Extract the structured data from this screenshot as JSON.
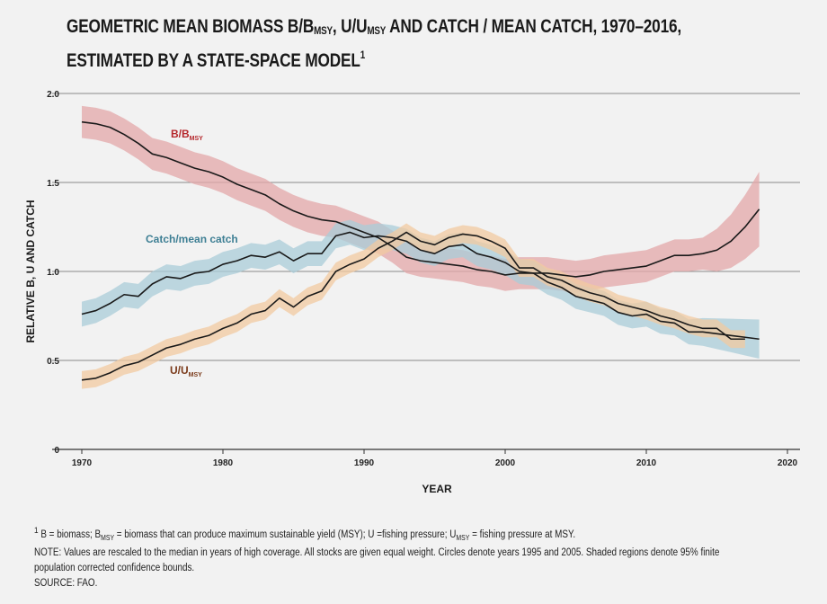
{
  "title": {
    "line1_parts": [
      "GEOMETRIC MEAN BIOMASS B/B",
      "MSY",
      ", U/U",
      "MSY",
      " AND CATCH / MEAN CATCH, 1970–2016,"
    ],
    "line2": "ESTIMATED BY A STATE-SPACE MODEL",
    "line2_sup": "1"
  },
  "footer": {
    "note1_parts": [
      "1",
      " B = biomass; B",
      "MSY",
      " = biomass that can produce maximum sustainable yield (MSY); U =fishing pressure; U",
      "MSY",
      " = fishing pressure at MSY."
    ],
    "note2": "NOTE: Values are rescaled to the median in years of high coverage. All stocks are given equal weight. Circles denote years 1995 and 2005. Shaded regions denote 95% finite",
    "note3": "population corrected confidence bounds.",
    "source": "SOURCE: FAO."
  },
  "chart_data": {
    "type": "line",
    "title": "GEOMETRIC MEAN BIOMASS B/BMSY, U/UMSY AND CATCH / MEAN CATCH, 1970–2016, ESTIMATED BY A STATE-SPACE MODEL",
    "xlabel": "YEAR",
    "ylabel": "RELATIVE B, U AND CATCH",
    "xlim": [
      1968,
      2021
    ],
    "ylim": [
      0,
      2.0
    ],
    "xticks": [
      1970,
      1980,
      1990,
      2000,
      2010,
      2020
    ],
    "yticks": [
      0,
      0.5,
      1.0,
      1.5,
      2.0
    ],
    "ytick_labels": [
      "0",
      "0.5",
      "1.0",
      "1.5",
      "2.0"
    ],
    "grid": "horizontal",
    "series": [
      {
        "name": "B/BMSY",
        "label_main": "B/B",
        "label_sub": "MSY",
        "color": "#b5262b",
        "band_color": "#e3a7a8",
        "x": [
          1970,
          1971,
          1972,
          1973,
          1974,
          1975,
          1976,
          1977,
          1978,
          1979,
          1980,
          1981,
          1982,
          1983,
          1984,
          1985,
          1986,
          1987,
          1988,
          1989,
          1990,
          1991,
          1992,
          1993,
          1994,
          1995,
          1996,
          1997,
          1998,
          1999,
          2000,
          2001,
          2002,
          2003,
          2004,
          2005,
          2006,
          2007,
          2008,
          2009,
          2010,
          2011,
          2012,
          2013,
          2014,
          2015,
          2016,
          2017,
          2018
        ],
        "values": [
          1.84,
          1.83,
          1.81,
          1.77,
          1.72,
          1.66,
          1.64,
          1.61,
          1.58,
          1.56,
          1.53,
          1.49,
          1.46,
          1.43,
          1.38,
          1.34,
          1.31,
          1.29,
          1.28,
          1.25,
          1.22,
          1.19,
          1.14,
          1.08,
          1.06,
          1.05,
          1.04,
          1.03,
          1.01,
          1.0,
          0.98,
          0.99,
          0.99,
          0.99,
          0.98,
          0.97,
          0.98,
          1.0,
          1.01,
          1.02,
          1.03,
          1.06,
          1.09,
          1.09,
          1.1,
          1.12,
          1.17,
          1.25,
          1.35
        ],
        "band": 0.09
      },
      {
        "name": "Catch/mean catch",
        "label_main": "Catch/mean catch",
        "label_sub": "",
        "color": "#3e7f94",
        "band_color": "#a9ccd8",
        "x": [
          1970,
          1971,
          1972,
          1973,
          1974,
          1975,
          1976,
          1977,
          1978,
          1979,
          1980,
          1981,
          1982,
          1983,
          1984,
          1985,
          1986,
          1987,
          1988,
          1989,
          1990,
          1991,
          1992,
          1993,
          1994,
          1995,
          1996,
          1997,
          1998,
          1999,
          2000,
          2001,
          2002,
          2003,
          2004,
          2005,
          2006,
          2007,
          2008,
          2009,
          2010,
          2011,
          2012,
          2013,
          2014,
          2015,
          2016,
          2017,
          2018
        ],
        "values": [
          0.76,
          0.78,
          0.82,
          0.87,
          0.86,
          0.93,
          0.97,
          0.96,
          0.99,
          1.0,
          1.04,
          1.06,
          1.09,
          1.08,
          1.11,
          1.06,
          1.1,
          1.1,
          1.2,
          1.22,
          1.19,
          1.2,
          1.19,
          1.17,
          1.12,
          1.1,
          1.14,
          1.15,
          1.1,
          1.08,
          1.05,
          1.0,
          0.99,
          0.94,
          0.91,
          0.86,
          0.84,
          0.82,
          0.77,
          0.75,
          0.76,
          0.72,
          0.71,
          0.66,
          0.66,
          0.65,
          0.64,
          0.63,
          0.62
        ],
        "band": 0.07
      },
      {
        "name": "U/UMSY",
        "label_main": "U/U",
        "label_sub": "MSY",
        "color": "#7a3a1a",
        "band_color": "#f2c9a0",
        "x": [
          1970,
          1971,
          1972,
          1973,
          1974,
          1975,
          1976,
          1977,
          1978,
          1979,
          1980,
          1981,
          1982,
          1983,
          1984,
          1985,
          1986,
          1987,
          1988,
          1989,
          1990,
          1991,
          1992,
          1993,
          1994,
          1995,
          1996,
          1997,
          1998,
          1999,
          2000,
          2001,
          2002,
          2003,
          2004,
          2005,
          2006,
          2007,
          2008,
          2009,
          2010,
          2011,
          2012,
          2013,
          2014,
          2015,
          2016,
          2017
        ],
        "values": [
          0.39,
          0.4,
          0.43,
          0.47,
          0.49,
          0.53,
          0.57,
          0.59,
          0.62,
          0.64,
          0.68,
          0.71,
          0.76,
          0.78,
          0.85,
          0.8,
          0.86,
          0.89,
          1.0,
          1.04,
          1.07,
          1.13,
          1.17,
          1.22,
          1.17,
          1.15,
          1.19,
          1.21,
          1.2,
          1.17,
          1.13,
          1.02,
          1.02,
          0.97,
          0.95,
          0.91,
          0.88,
          0.86,
          0.82,
          0.8,
          0.78,
          0.75,
          0.73,
          0.7,
          0.68,
          0.68,
          0.62,
          0.62
        ],
        "band": 0.05
      }
    ]
  }
}
